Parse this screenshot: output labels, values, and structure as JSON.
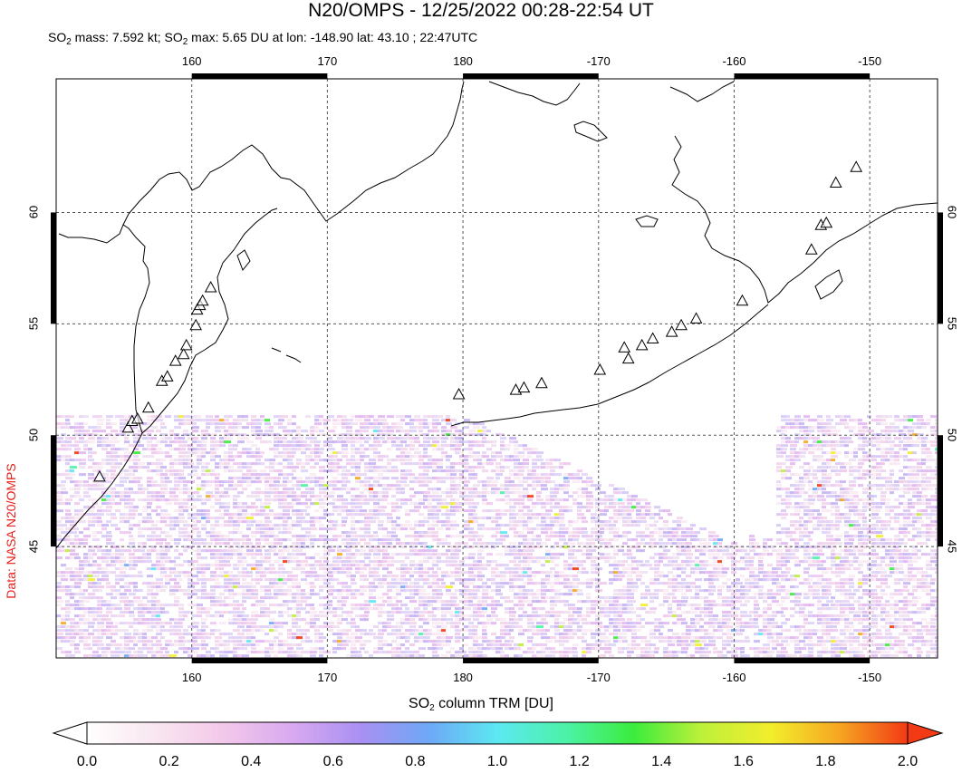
{
  "title": "N20/OMPS - 12/25/2022 00:28-22:54 UT",
  "subtitle": {
    "p1": "SO",
    "sub1": "2",
    "p2": " mass: 7.592 kt; SO",
    "sub2": "2",
    "p3": " max: 5.65 DU at lon: -148.90 lat: 43.10 ; 22:47UTC"
  },
  "credit": "Data: NASA N20/OMPS",
  "map": {
    "lon_range": [
      150,
      215
    ],
    "lat_range": [
      40,
      66
    ],
    "lon_ticks": [
      {
        "lon": 160,
        "label": "160"
      },
      {
        "lon": 170,
        "label": "170"
      },
      {
        "lon": 180,
        "label": "180"
      },
      {
        "lon": 190,
        "label": "-170"
      },
      {
        "lon": 200,
        "label": "-160"
      },
      {
        "lon": 210,
        "label": "-150"
      }
    ],
    "lat_ticks": [
      {
        "lat": 45,
        "label": "45"
      },
      {
        "lat": 50,
        "label": "50"
      },
      {
        "lat": 55,
        "label": "55"
      },
      {
        "lat": 60,
        "label": "60"
      }
    ],
    "volcanoes": [
      [
        153.2,
        48.1
      ],
      [
        155.3,
        50.3
      ],
      [
        155.6,
        50.6
      ],
      [
        156.0,
        50.7
      ],
      [
        156.8,
        51.2
      ],
      [
        157.8,
        52.4
      ],
      [
        158.2,
        52.6
      ],
      [
        158.8,
        53.3
      ],
      [
        159.4,
        53.6
      ],
      [
        159.6,
        54.0
      ],
      [
        160.3,
        54.9
      ],
      [
        160.4,
        55.6
      ],
      [
        160.6,
        55.8
      ],
      [
        160.8,
        56.0
      ],
      [
        161.4,
        56.6
      ],
      [
        179.7,
        51.8
      ],
      [
        183.9,
        52.0
      ],
      [
        184.5,
        52.1
      ],
      [
        185.8,
        52.3
      ],
      [
        190.1,
        52.9
      ],
      [
        191.9,
        53.9
      ],
      [
        192.2,
        53.4
      ],
      [
        193.2,
        54.0
      ],
      [
        194.0,
        54.3
      ],
      [
        195.4,
        54.6
      ],
      [
        196.1,
        54.9
      ],
      [
        197.2,
        55.2
      ],
      [
        200.6,
        56.0
      ],
      [
        205.7,
        58.3
      ],
      [
        206.4,
        59.4
      ],
      [
        206.8,
        59.5
      ],
      [
        207.5,
        61.3
      ],
      [
        209.0,
        62.0
      ]
    ]
  },
  "colorbar": {
    "title_p1": "SO",
    "title_sub": "2",
    "title_p2": " column TRM [DU]",
    "min": 0.0,
    "max": 2.0,
    "tick_labels": [
      "0.0",
      "0.2",
      "0.4",
      "0.6",
      "0.8",
      "1.0",
      "1.2",
      "1.4",
      "1.6",
      "1.8",
      "2.0"
    ],
    "colors": [
      "#ffffff",
      "#f9e6f0",
      "#f3c8ea",
      "#d9a9f0",
      "#a990f2",
      "#6ea8f6",
      "#5ce8f2",
      "#4cf2a8",
      "#3cec3c",
      "#bef03a",
      "#f2ee2c",
      "#f6a622",
      "#f23a14"
    ]
  }
}
